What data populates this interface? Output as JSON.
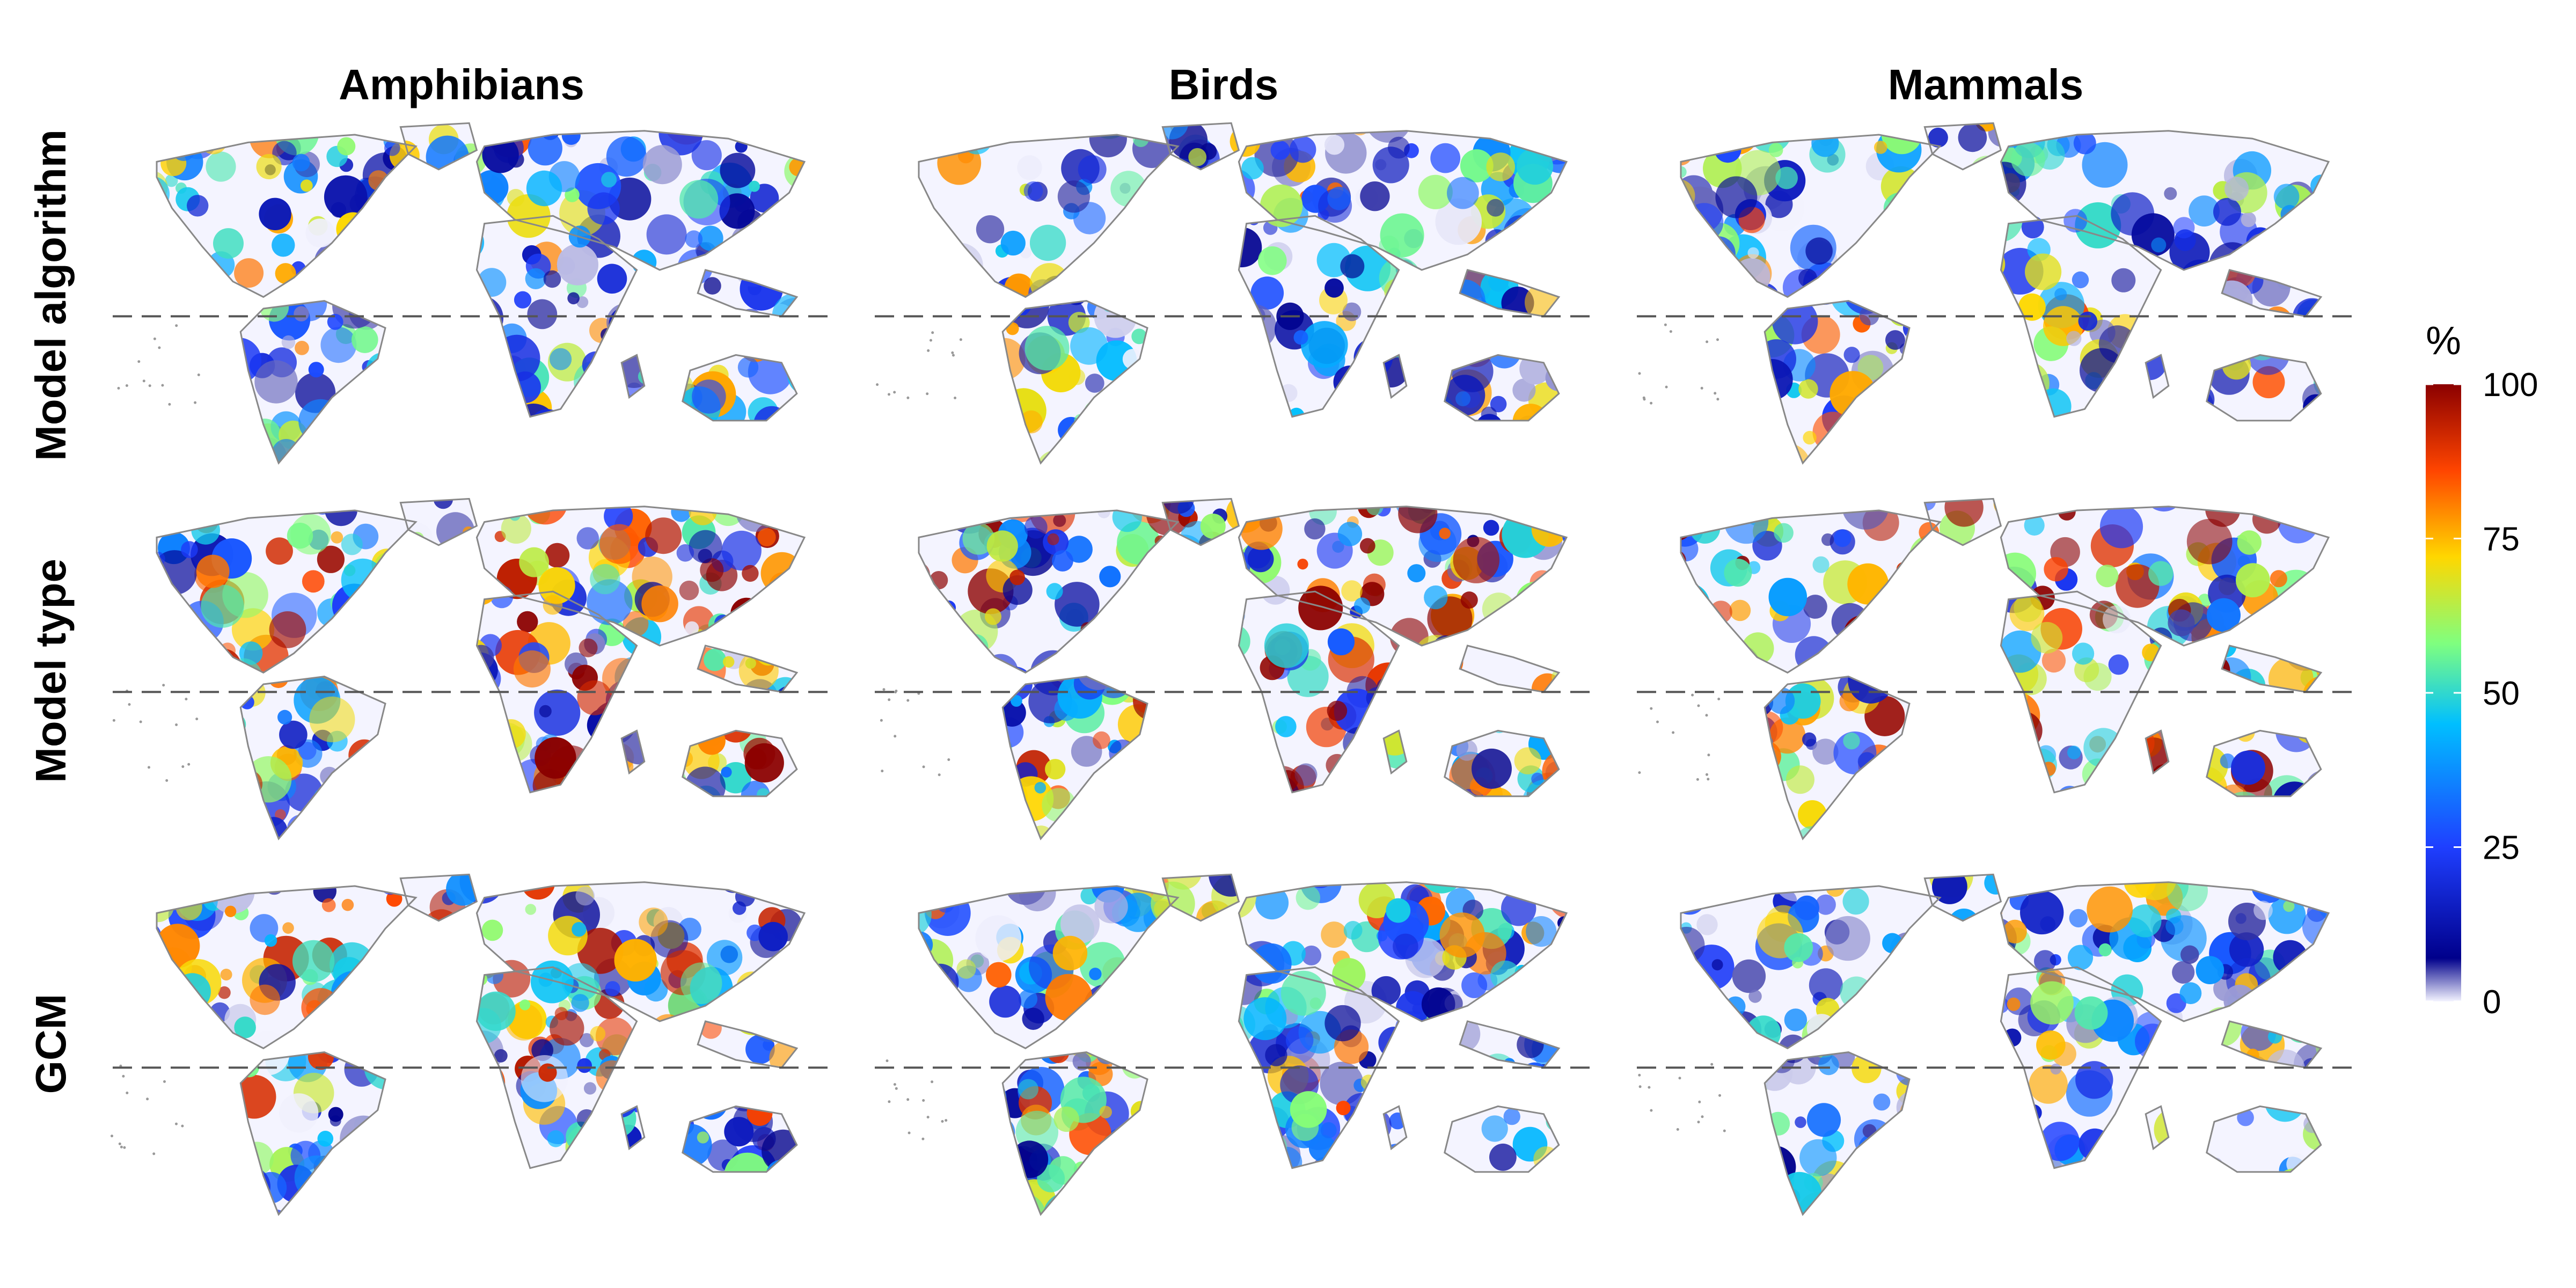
{
  "figure": {
    "columns": [
      "Amphibians",
      "Birds",
      "Mammals"
    ],
    "rows": [
      "Model algorithm",
      "Model type",
      "GCM"
    ]
  },
  "legend": {
    "title": "%",
    "ticks": [
      "0",
      "25",
      "50",
      "75",
      "100"
    ],
    "tick_values": [
      0,
      25,
      50,
      75,
      100
    ],
    "color_stops": [
      "#f4f4ff",
      "#00008b",
      "#1f3fff",
      "#00bfff",
      "#7fff7f",
      "#ffd700",
      "#ff4500",
      "#8b0000"
    ]
  },
  "maps": [
    {
      "row": "Model algorithm",
      "column": "Amphibians",
      "intensity": 0.3
    },
    {
      "row": "Model algorithm",
      "column": "Birds",
      "intensity": 0.3
    },
    {
      "row": "Model algorithm",
      "column": "Mammals",
      "intensity": 0.32
    },
    {
      "row": "Model type",
      "column": "Amphibians",
      "intensity": 0.5
    },
    {
      "row": "Model type",
      "column": "Birds",
      "intensity": 0.55
    },
    {
      "row": "Model type",
      "column": "Mammals",
      "intensity": 0.58
    },
    {
      "row": "GCM",
      "column": "Amphibians",
      "intensity": 0.42
    },
    {
      "row": "GCM",
      "column": "Birds",
      "intensity": 0.35
    },
    {
      "row": "GCM",
      "column": "Mammals",
      "intensity": 0.25
    }
  ],
  "reference_line": {
    "style": "dashed",
    "color": "#555555"
  },
  "background": "#ffffff",
  "coastline_color": "#888888"
}
